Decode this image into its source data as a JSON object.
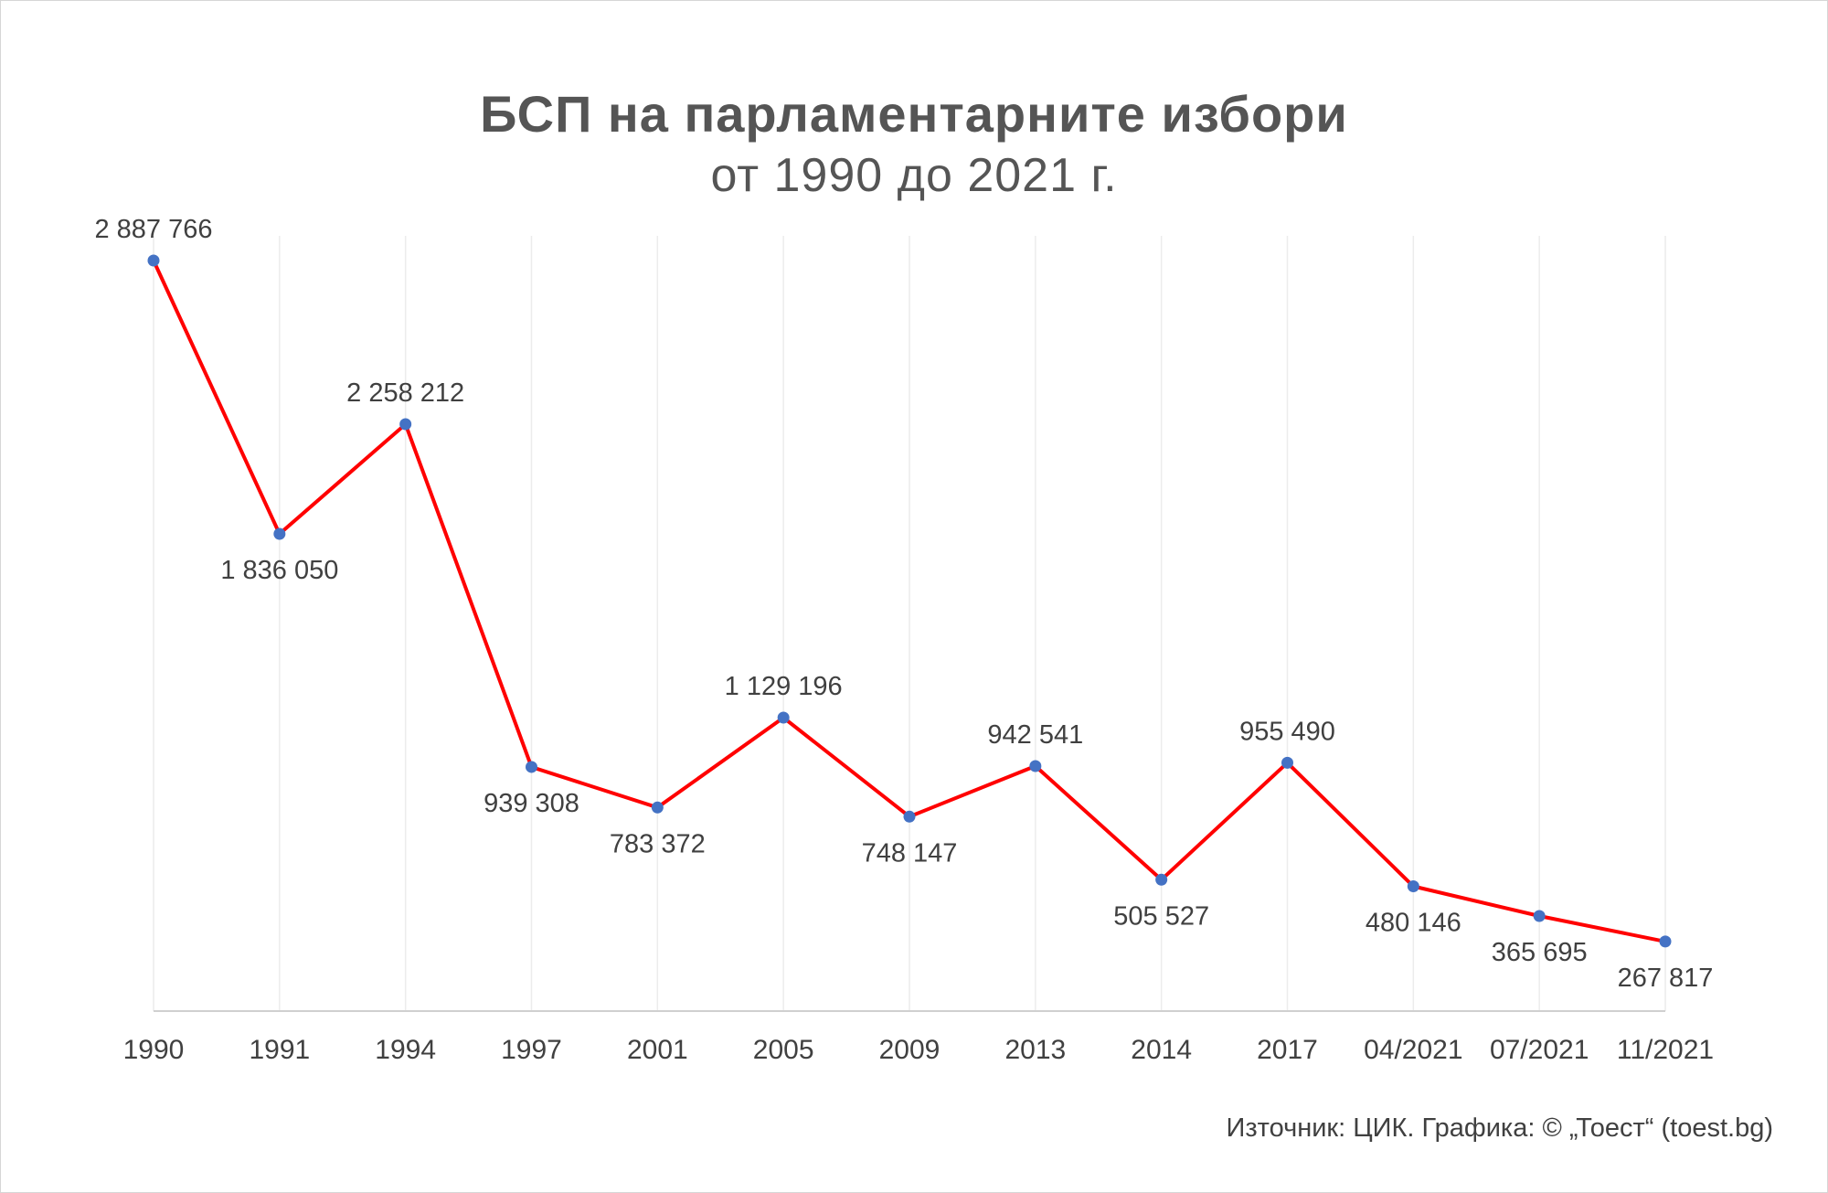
{
  "header": {
    "title": "БСП на парламентарните избори",
    "subtitle": "от 1990 до 2021 г."
  },
  "footer": {
    "source": "Източник: ЦИК. Графика: © „Тоест“ (toest.bg)"
  },
  "colors": {
    "line": "#ff0000",
    "marker": "#4472c4",
    "grid": "#ececec",
    "axis": "#d0d0d0",
    "text": "#404040",
    "title": "#555555"
  },
  "chart_data": {
    "type": "line",
    "title": "БСП на парламентарните избори",
    "subtitle": "от 1990 до 2021 г.",
    "xlabel": "",
    "ylabel": "",
    "ylim": [
      0,
      3000000
    ],
    "grid": "vertical",
    "legend": "none",
    "categories": [
      "1990",
      "1991",
      "1994",
      "1997",
      "2001",
      "2005",
      "2009",
      "2013",
      "2014",
      "2017",
      "04/2021",
      "07/2021",
      "11/2021"
    ],
    "values": [
      2887766,
      1836050,
      2258212,
      939308,
      783372,
      1129196,
      748147,
      942541,
      505527,
      955490,
      480146,
      365695,
      267817
    ],
    "data_labels": [
      "2 887 766",
      "1 836 050",
      "2 258 212",
      "939 308",
      "783 372",
      "1 129 196",
      "748 147",
      "942 541",
      "505 527",
      "955 490",
      "480 146",
      "365 695",
      "267 817"
    ],
    "label_position": [
      "above",
      "below",
      "above",
      "below",
      "below",
      "above",
      "below",
      "above",
      "below",
      "above",
      "below",
      "below",
      "below"
    ]
  }
}
